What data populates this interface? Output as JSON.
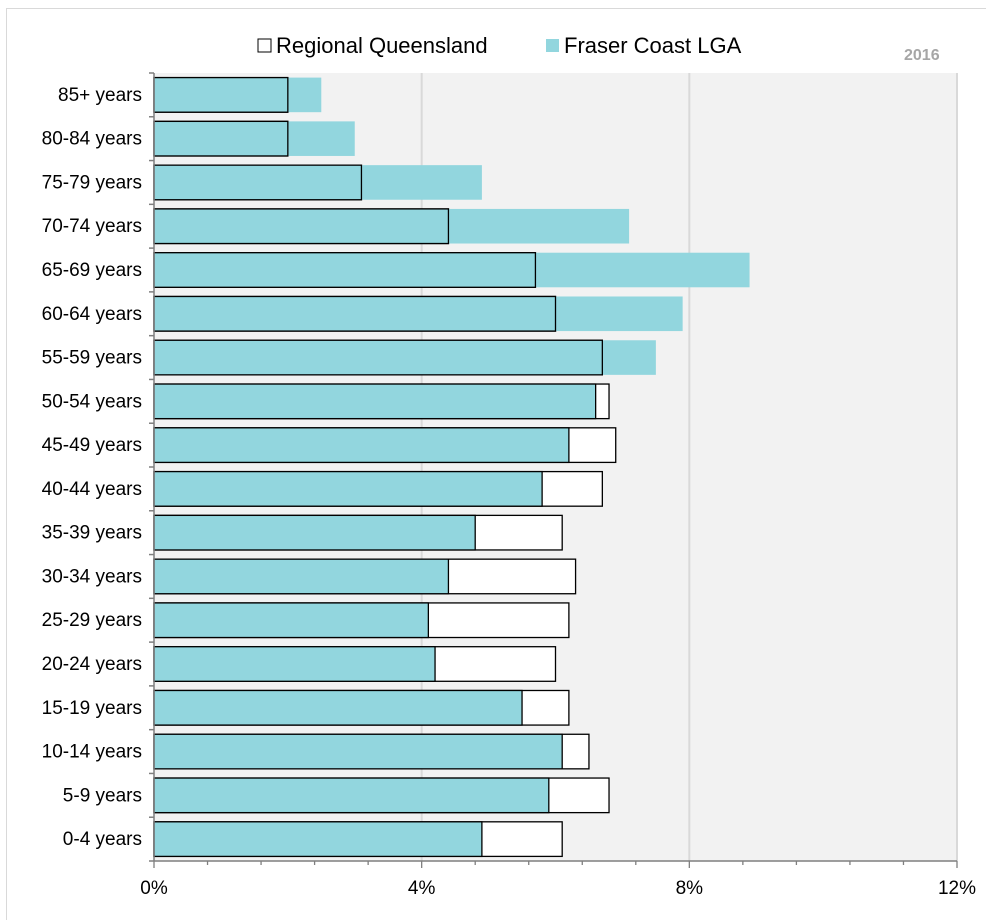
{
  "chart_data": {
    "type": "bar",
    "orientation": "horizontal",
    "overlapped": true,
    "year": "2016",
    "categories": [
      "85+ years",
      "80-84 years",
      "75-79 years",
      "70-74 years",
      "65-69 years",
      "60-64 years",
      "55-59 years",
      "50-54 years",
      "45-49 years",
      "40-44 years",
      "35-39 years",
      "30-34 years",
      "25-29 years",
      "20-24 years",
      "15-19 years",
      "10-14 years",
      "5-9 years",
      "0-4 years"
    ],
    "series": [
      {
        "name": "Regional Queensland",
        "color": "#ffffff",
        "stroke": "#000000",
        "values": [
          2.0,
          2.0,
          3.1,
          4.4,
          5.7,
          6.0,
          6.7,
          6.8,
          6.9,
          6.7,
          6.1,
          6.3,
          6.2,
          6.0,
          6.2,
          6.5,
          6.8,
          6.1
        ]
      },
      {
        "name": "Fraser Coast LGA",
        "color": "#92d6de",
        "values": [
          2.5,
          3.0,
          4.9,
          7.1,
          8.9,
          7.9,
          7.5,
          6.6,
          6.2,
          5.8,
          4.8,
          4.4,
          4.1,
          4.2,
          5.5,
          6.1,
          5.9,
          4.9
        ]
      }
    ],
    "xlim": [
      0,
      12
    ],
    "xticks": [
      0,
      4,
      8,
      12
    ],
    "xtick_labels": [
      "0%",
      "4%",
      "8%",
      "12%"
    ],
    "minor_tick_step": 0.8,
    "grid": true,
    "legend": "top-center",
    "plot_background": "#f2f2f2",
    "grid_color": "#d9d9d9"
  }
}
